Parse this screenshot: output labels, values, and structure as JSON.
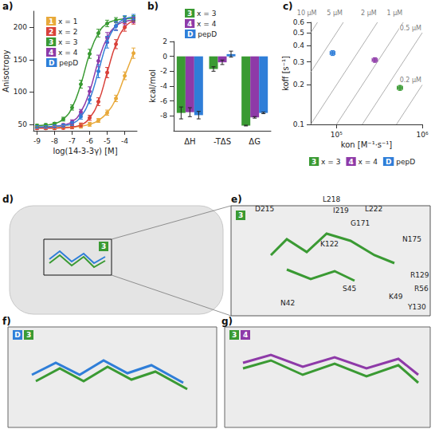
{
  "chart_data": [
    {
      "panel": "a)",
      "type": "line",
      "x_label": "log(14-3-3γ) [M]",
      "y_label": "Anisotropy",
      "xlim": [
        -9.2,
        -3.3
      ],
      "xticks": [
        -9,
        -8,
        -7,
        -6,
        -5,
        -4
      ],
      "ylim": [
        40,
        225
      ],
      "yticks": [
        50,
        100,
        150,
        200
      ],
      "grid": false,
      "legend": "upper left",
      "marker": "circle",
      "x": [
        -9,
        -8.5,
        -8,
        -7.5,
        -7,
        -6.5,
        -6,
        -5.5,
        -5,
        -4.5,
        -4,
        -3.5
      ],
      "series": [
        {
          "name": "x = 1",
          "badge": "1",
          "color": "#e8a93a",
          "values": [
            45,
            45,
            45,
            45.5,
            46,
            47,
            50,
            56,
            68,
            90,
            125,
            160
          ],
          "errors": [
            2,
            2,
            2,
            2,
            2,
            3,
            3,
            3,
            4,
            5,
            6,
            8
          ]
        },
        {
          "name": "x = 2",
          "badge": "2",
          "color": "#d9413a",
          "values": [
            44,
            44,
            44,
            44.5,
            46,
            49,
            60,
            85,
            130,
            174,
            200,
            210
          ],
          "errors": [
            2,
            2,
            2,
            2,
            3,
            3,
            4,
            6,
            8,
            7,
            6,
            5
          ]
        },
        {
          "name": "x = 3",
          "badge": "3",
          "color": "#3a9a33",
          "values": [
            48,
            49,
            51,
            58,
            76,
            112,
            159,
            191,
            206,
            211,
            213,
            214
          ],
          "errors": [
            2,
            2,
            2,
            3,
            4,
            6,
            7,
            6,
            5,
            4,
            4,
            4
          ]
        },
        {
          "name": "x = 4",
          "badge": "4",
          "color": "#8e3aa8",
          "values": [
            46,
            46,
            47,
            49,
            54,
            69,
            101,
            148,
            184,
            202,
            209,
            211
          ],
          "errors": [
            2,
            2,
            2,
            2,
            3,
            4,
            7,
            9,
            8,
            6,
            5,
            4
          ]
        },
        {
          "name": "pepD",
          "badge": "D",
          "color": "#2f7ed8",
          "values": [
            46,
            46,
            47,
            48,
            51,
            62,
            88,
            132,
            177,
            202,
            213,
            216
          ],
          "errors": [
            2,
            2,
            2,
            2,
            3,
            4,
            6,
            10,
            9,
            7,
            5,
            4
          ]
        }
      ]
    },
    {
      "panel": "b)",
      "type": "bar",
      "y_label": "kcal/mol",
      "categories": [
        "ΔH",
        "-TΔS",
        "ΔG"
      ],
      "ylim": [
        -10,
        2
      ],
      "yticks": [
        -8,
        -6,
        -4,
        -2,
        0,
        2
      ],
      "grid": false,
      "legend": "top",
      "series": [
        {
          "name": "x = 3",
          "badge": "3",
          "color": "#3a9a33",
          "values": [
            -7.6,
            -1.7,
            -9.3
          ],
          "errors": [
            0.8,
            0.3,
            0.05
          ]
        },
        {
          "name": "x = 4",
          "badge": "4",
          "color": "#8e3aa8",
          "values": [
            -7.5,
            -0.8,
            -8.2
          ],
          "errors": [
            0.6,
            0.3,
            0.1
          ]
        },
        {
          "name": "pepD",
          "badge": "D",
          "color": "#2f7ed8",
          "values": [
            -7.9,
            0.3,
            -7.6
          ],
          "errors": [
            0.5,
            0.4,
            0.1
          ]
        }
      ]
    },
    {
      "panel": "c)",
      "type": "scatter",
      "log": true,
      "x_label": "kon [M⁻¹·s⁻¹]",
      "y_label": "koff [s⁻¹]",
      "xlim": [
        50000,
        1000000
      ],
      "xticks": [
        {
          "value": 100000,
          "label": "10⁵"
        },
        {
          "value": 1000000,
          "label": "10⁶"
        }
      ],
      "ylim": [
        0.1,
        0.6
      ],
      "yticks": [
        0.1,
        0.2,
        0.3,
        0.4,
        0.5,
        0.6
      ],
      "grid": false,
      "legend": "bottom",
      "marker": "circle",
      "reference_lines": [
        {
          "value": 10,
          "label": "10 µM"
        },
        {
          "value": 5,
          "label": "5 µM"
        },
        {
          "value": 2,
          "label": "2 µM"
        },
        {
          "value": 1,
          "label": "1 µM"
        },
        {
          "value": 0.5,
          "label": "0.5 µM"
        },
        {
          "value": 0.2,
          "label": "0.2 µM"
        }
      ],
      "series": [
        {
          "name": "x = 3",
          "badge": "3",
          "color": "#3a9a33",
          "x": [
            550000
          ],
          "values": [
            0.19
          ],
          "x_errors": [
            40000
          ],
          "errors": [
            0.008
          ]
        },
        {
          "name": "x = 4",
          "badge": "4",
          "color": "#8e3aa8",
          "x": [
            280000
          ],
          "values": [
            0.31
          ],
          "x_errors": [
            20000
          ],
          "errors": [
            0.012
          ]
        },
        {
          "name": "pepD",
          "badge": "D",
          "color": "#2f7ed8",
          "x": [
            90000
          ],
          "values": [
            0.35
          ],
          "x_errors": [
            6000
          ],
          "errors": [
            0.015
          ]
        }
      ]
    }
  ],
  "structure_panels": [
    {
      "panel": "d)",
      "badges": [
        "3"
      ]
    },
    {
      "panel": "e)",
      "residues": [
        "D215",
        "L218",
        "I219",
        "L222",
        "G171",
        "N175",
        "K122",
        "R129",
        "R56",
        "K49",
        "Y130",
        "S45",
        "N42"
      ]
    },
    {
      "panel": "f)",
      "badges": [
        "D",
        "3"
      ]
    },
    {
      "panel": "g)",
      "badges": [
        "3",
        "4"
      ]
    }
  ]
}
